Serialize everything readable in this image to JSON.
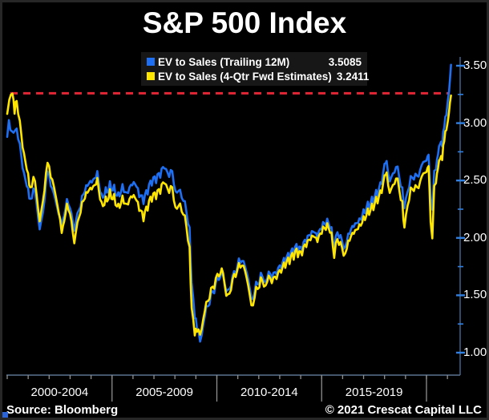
{
  "page": {
    "title": "S&P 500 Index",
    "source": "Source: Bloomberg",
    "copyright": "© 2021 Crescat Capital LLC"
  },
  "legend": {
    "items": [
      {
        "label": "EV to Sales (Trailing 12M)",
        "value": "3.5085",
        "color": "#1f6ff2"
      },
      {
        "label": "EV to Sales (4-Qtr Fwd Estimates)",
        "value": "3.2411",
        "color": "#ffe600"
      }
    ]
  },
  "chart_data": {
    "type": "line",
    "title": "S&P 500 Index",
    "source": "Bloomberg",
    "x_axis": {
      "labels": [
        {
          "label": "2000-2004",
          "center_year": 2002.5
        },
        {
          "label": "2005-2009",
          "center_year": 2007.5
        },
        {
          "label": "2010-2014",
          "center_year": 2012.5
        },
        {
          "label": "2015-2019",
          "center_year": 2017.5
        }
      ],
      "group_boundary_years": [
        2005,
        2010,
        2015,
        2020
      ],
      "minor_tick_year_start": 2000,
      "minor_tick_year_end": 2021,
      "xlim_years": [
        2000,
        2021.6
      ]
    },
    "y_axis": {
      "major_ticks": [
        3.5,
        3.0,
        2.5,
        2.0,
        1.5,
        1.0
      ],
      "minor_ticks": [
        3.25,
        2.75,
        2.25,
        1.75,
        1.25
      ],
      "ylim": [
        0.8,
        3.56
      ],
      "grid": false,
      "side": "right"
    },
    "threshold_line": {
      "value": 3.26,
      "color": "#e32636",
      "style": "dashed"
    },
    "colors": {
      "axis_line": "#3f5d85",
      "tick": "#2f7fe0",
      "x_divider": "#8f8f8f",
      "background": "#000000"
    },
    "legend_position": "top",
    "series": [
      {
        "name": "EV to Sales (Trailing 12M)",
        "color": "#1f6ff2",
        "last_value": 3.5085,
        "points": [
          [
            2000.0,
            2.88
          ],
          [
            2000.08,
            3.0
          ],
          [
            2000.15,
            2.97
          ],
          [
            2000.3,
            2.9
          ],
          [
            2000.45,
            2.96
          ],
          [
            2000.6,
            2.8
          ],
          [
            2000.8,
            2.55
          ],
          [
            2001.0,
            2.42
          ],
          [
            2001.1,
            2.3
          ],
          [
            2001.25,
            2.45
          ],
          [
            2001.4,
            2.3
          ],
          [
            2001.55,
            2.08
          ],
          [
            2001.7,
            2.2
          ],
          [
            2001.85,
            2.5
          ],
          [
            2002.0,
            2.57
          ],
          [
            2002.15,
            2.4
          ],
          [
            2002.3,
            2.35
          ],
          [
            2002.45,
            2.2
          ],
          [
            2002.6,
            2.12
          ],
          [
            2002.72,
            2.2
          ],
          [
            2002.85,
            2.32
          ],
          [
            2003.0,
            2.27
          ],
          [
            2003.2,
            2.07
          ],
          [
            2003.35,
            2.2
          ],
          [
            2003.5,
            2.3
          ],
          [
            2003.7,
            2.42
          ],
          [
            2003.9,
            2.48
          ],
          [
            2004.1,
            2.5
          ],
          [
            2004.3,
            2.56
          ],
          [
            2004.5,
            2.35
          ],
          [
            2004.7,
            2.4
          ],
          [
            2004.9,
            2.45
          ],
          [
            2005.1,
            2.42
          ],
          [
            2005.3,
            2.36
          ],
          [
            2005.5,
            2.44
          ],
          [
            2005.7,
            2.38
          ],
          [
            2005.9,
            2.46
          ],
          [
            2006.1,
            2.48
          ],
          [
            2006.3,
            2.38
          ],
          [
            2006.5,
            2.33
          ],
          [
            2006.7,
            2.42
          ],
          [
            2006.9,
            2.5
          ],
          [
            2007.1,
            2.52
          ],
          [
            2007.3,
            2.56
          ],
          [
            2007.5,
            2.63
          ],
          [
            2007.65,
            2.54
          ],
          [
            2007.8,
            2.6
          ],
          [
            2007.95,
            2.48
          ],
          [
            2008.1,
            2.38
          ],
          [
            2008.25,
            2.42
          ],
          [
            2008.4,
            2.32
          ],
          [
            2008.55,
            2.25
          ],
          [
            2008.7,
            2.05
          ],
          [
            2008.8,
            1.6
          ],
          [
            2008.95,
            1.32
          ],
          [
            2009.05,
            1.25
          ],
          [
            2009.2,
            1.08
          ],
          [
            2009.35,
            1.25
          ],
          [
            2009.5,
            1.38
          ],
          [
            2009.65,
            1.45
          ],
          [
            2009.8,
            1.52
          ],
          [
            2009.95,
            1.6
          ],
          [
            2010.1,
            1.65
          ],
          [
            2010.3,
            1.7
          ],
          [
            2010.45,
            1.52
          ],
          [
            2010.6,
            1.56
          ],
          [
            2010.75,
            1.65
          ],
          [
            2010.9,
            1.72
          ],
          [
            2011.05,
            1.78
          ],
          [
            2011.2,
            1.82
          ],
          [
            2011.35,
            1.74
          ],
          [
            2011.5,
            1.66
          ],
          [
            2011.65,
            1.44
          ],
          [
            2011.8,
            1.55
          ],
          [
            2011.95,
            1.6
          ],
          [
            2012.1,
            1.68
          ],
          [
            2012.25,
            1.62
          ],
          [
            2012.4,
            1.65
          ],
          [
            2012.55,
            1.7
          ],
          [
            2012.7,
            1.66
          ],
          [
            2012.85,
            1.72
          ],
          [
            2013.0,
            1.74
          ],
          [
            2013.2,
            1.8
          ],
          [
            2013.4,
            1.84
          ],
          [
            2013.6,
            1.88
          ],
          [
            2013.8,
            1.92
          ],
          [
            2014.0,
            1.9
          ],
          [
            2014.2,
            1.97
          ],
          [
            2014.4,
            2.02
          ],
          [
            2014.6,
            2.06
          ],
          [
            2014.8,
            2.02
          ],
          [
            2015.0,
            2.1
          ],
          [
            2015.2,
            2.14
          ],
          [
            2015.4,
            2.12
          ],
          [
            2015.6,
            1.92
          ],
          [
            2015.75,
            2.04
          ],
          [
            2015.9,
            2.02
          ],
          [
            2016.05,
            1.9
          ],
          [
            2016.2,
            1.98
          ],
          [
            2016.4,
            2.08
          ],
          [
            2016.6,
            2.12
          ],
          [
            2016.8,
            2.15
          ],
          [
            2017.0,
            2.22
          ],
          [
            2017.2,
            2.28
          ],
          [
            2017.4,
            2.32
          ],
          [
            2017.6,
            2.38
          ],
          [
            2017.8,
            2.45
          ],
          [
            2018.0,
            2.62
          ],
          [
            2018.1,
            2.68
          ],
          [
            2018.25,
            2.48
          ],
          [
            2018.4,
            2.56
          ],
          [
            2018.55,
            2.62
          ],
          [
            2018.7,
            2.55
          ],
          [
            2018.85,
            2.4
          ],
          [
            2018.95,
            2.25
          ],
          [
            2019.1,
            2.42
          ],
          [
            2019.25,
            2.5
          ],
          [
            2019.4,
            2.55
          ],
          [
            2019.55,
            2.52
          ],
          [
            2019.7,
            2.6
          ],
          [
            2019.85,
            2.65
          ],
          [
            2020.0,
            2.7
          ],
          [
            2020.1,
            2.72
          ],
          [
            2020.2,
            2.35
          ],
          [
            2020.28,
            2.22
          ],
          [
            2020.37,
            2.55
          ],
          [
            2020.45,
            2.62
          ],
          [
            2020.55,
            2.72
          ],
          [
            2020.65,
            2.85
          ],
          [
            2020.75,
            2.8
          ],
          [
            2020.85,
            3.0
          ],
          [
            2020.95,
            3.08
          ],
          [
            2021.02,
            3.2
          ],
          [
            2021.08,
            3.28
          ],
          [
            2021.12,
            3.38
          ],
          [
            2021.17,
            3.5085
          ]
        ]
      },
      {
        "name": "EV to Sales (4-Qtr Fwd Estimates)",
        "color": "#ffe600",
        "last_value": 3.2411,
        "points": [
          [
            2000.0,
            3.08
          ],
          [
            2000.1,
            3.2
          ],
          [
            2000.25,
            3.26
          ],
          [
            2000.35,
            3.12
          ],
          [
            2000.45,
            3.2
          ],
          [
            2000.6,
            3.0
          ],
          [
            2000.8,
            2.72
          ],
          [
            2001.0,
            2.55
          ],
          [
            2001.1,
            2.4
          ],
          [
            2001.25,
            2.55
          ],
          [
            2001.4,
            2.38
          ],
          [
            2001.55,
            2.15
          ],
          [
            2001.7,
            2.3
          ],
          [
            2001.85,
            2.58
          ],
          [
            2002.0,
            2.64
          ],
          [
            2002.15,
            2.48
          ],
          [
            2002.3,
            2.4
          ],
          [
            2002.45,
            2.22
          ],
          [
            2002.6,
            2.06
          ],
          [
            2002.72,
            2.15
          ],
          [
            2002.85,
            2.28
          ],
          [
            2003.0,
            2.22
          ],
          [
            2003.2,
            1.96
          ],
          [
            2003.35,
            2.12
          ],
          [
            2003.5,
            2.25
          ],
          [
            2003.7,
            2.36
          ],
          [
            2003.9,
            2.42
          ],
          [
            2004.1,
            2.44
          ],
          [
            2004.3,
            2.5
          ],
          [
            2004.5,
            2.28
          ],
          [
            2004.7,
            2.32
          ],
          [
            2004.9,
            2.38
          ],
          [
            2005.1,
            2.34
          ],
          [
            2005.3,
            2.26
          ],
          [
            2005.5,
            2.34
          ],
          [
            2005.7,
            2.28
          ],
          [
            2005.9,
            2.36
          ],
          [
            2006.1,
            2.36
          ],
          [
            2006.3,
            2.26
          ],
          [
            2006.5,
            2.18
          ],
          [
            2006.7,
            2.28
          ],
          [
            2006.9,
            2.36
          ],
          [
            2007.1,
            2.38
          ],
          [
            2007.3,
            2.42
          ],
          [
            2007.5,
            2.5
          ],
          [
            2007.65,
            2.4
          ],
          [
            2007.8,
            2.46
          ],
          [
            2007.95,
            2.34
          ],
          [
            2008.1,
            2.24
          ],
          [
            2008.25,
            2.3
          ],
          [
            2008.4,
            2.2
          ],
          [
            2008.55,
            2.12
          ],
          [
            2008.7,
            1.88
          ],
          [
            2008.8,
            1.38
          ],
          [
            2008.95,
            1.17
          ],
          [
            2009.05,
            1.22
          ],
          [
            2009.2,
            1.14
          ],
          [
            2009.35,
            1.3
          ],
          [
            2009.5,
            1.42
          ],
          [
            2009.65,
            1.5
          ],
          [
            2009.8,
            1.56
          ],
          [
            2009.95,
            1.64
          ],
          [
            2010.1,
            1.68
          ],
          [
            2010.3,
            1.72
          ],
          [
            2010.45,
            1.48
          ],
          [
            2010.6,
            1.52
          ],
          [
            2010.75,
            1.62
          ],
          [
            2010.9,
            1.7
          ],
          [
            2011.05,
            1.74
          ],
          [
            2011.2,
            1.78
          ],
          [
            2011.35,
            1.7
          ],
          [
            2011.5,
            1.6
          ],
          [
            2011.65,
            1.38
          ],
          [
            2011.8,
            1.5
          ],
          [
            2011.95,
            1.56
          ],
          [
            2012.1,
            1.64
          ],
          [
            2012.25,
            1.58
          ],
          [
            2012.4,
            1.62
          ],
          [
            2012.55,
            1.66
          ],
          [
            2012.7,
            1.62
          ],
          [
            2012.85,
            1.68
          ],
          [
            2013.0,
            1.7
          ],
          [
            2013.2,
            1.76
          ],
          [
            2013.4,
            1.8
          ],
          [
            2013.6,
            1.84
          ],
          [
            2013.8,
            1.88
          ],
          [
            2014.0,
            1.86
          ],
          [
            2014.2,
            1.93
          ],
          [
            2014.4,
            1.98
          ],
          [
            2014.6,
            2.02
          ],
          [
            2014.8,
            1.98
          ],
          [
            2015.0,
            2.06
          ],
          [
            2015.2,
            2.1
          ],
          [
            2015.4,
            2.08
          ],
          [
            2015.6,
            1.86
          ],
          [
            2015.75,
            1.98
          ],
          [
            2015.9,
            1.96
          ],
          [
            2016.05,
            1.84
          ],
          [
            2016.2,
            1.92
          ],
          [
            2016.4,
            2.02
          ],
          [
            2016.6,
            2.06
          ],
          [
            2016.8,
            2.1
          ],
          [
            2017.0,
            2.16
          ],
          [
            2017.2,
            2.22
          ],
          [
            2017.4,
            2.26
          ],
          [
            2017.6,
            2.32
          ],
          [
            2017.8,
            2.38
          ],
          [
            2018.0,
            2.52
          ],
          [
            2018.1,
            2.58
          ],
          [
            2018.25,
            2.38
          ],
          [
            2018.4,
            2.46
          ],
          [
            2018.55,
            2.52
          ],
          [
            2018.7,
            2.44
          ],
          [
            2018.85,
            2.28
          ],
          [
            2018.95,
            2.08
          ],
          [
            2019.1,
            2.3
          ],
          [
            2019.25,
            2.4
          ],
          [
            2019.4,
            2.45
          ],
          [
            2019.55,
            2.42
          ],
          [
            2019.7,
            2.5
          ],
          [
            2019.85,
            2.55
          ],
          [
            2020.0,
            2.6
          ],
          [
            2020.1,
            2.62
          ],
          [
            2020.2,
            2.15
          ],
          [
            2020.28,
            1.97
          ],
          [
            2020.37,
            2.42
          ],
          [
            2020.45,
            2.5
          ],
          [
            2020.55,
            2.6
          ],
          [
            2020.65,
            2.72
          ],
          [
            2020.75,
            2.68
          ],
          [
            2020.85,
            2.88
          ],
          [
            2020.95,
            2.95
          ],
          [
            2021.02,
            3.02
          ],
          [
            2021.08,
            3.1
          ],
          [
            2021.12,
            3.18
          ],
          [
            2021.17,
            3.2411
          ]
        ]
      }
    ]
  }
}
